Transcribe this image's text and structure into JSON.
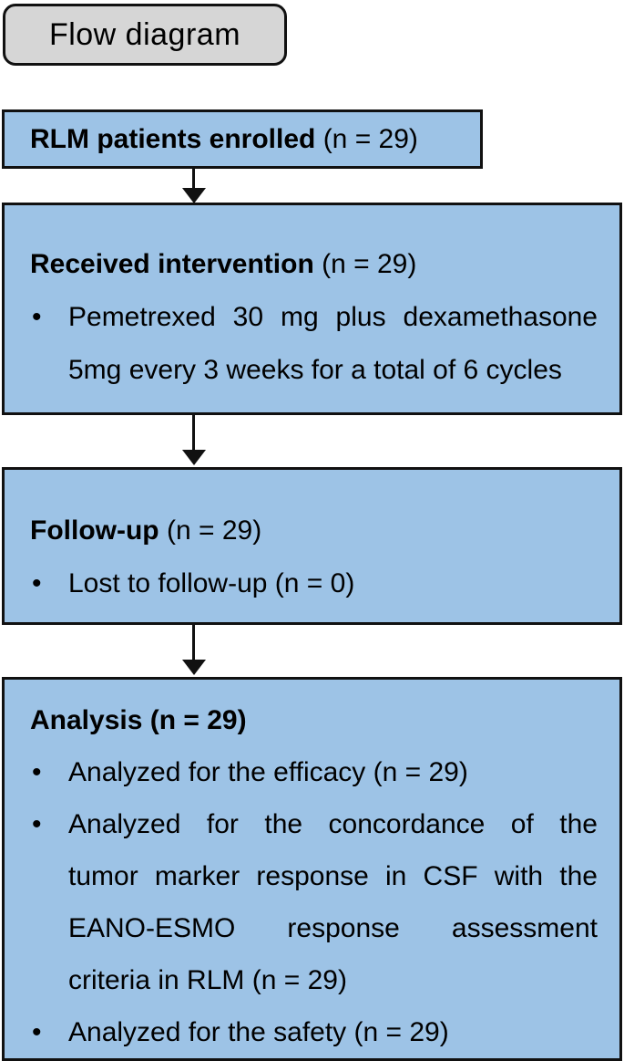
{
  "colors": {
    "box_fill": "#9DC3E6",
    "tag_fill": "#D6D6D6",
    "line": "#111111"
  },
  "bullet_char": "•",
  "tag": {
    "label": "Flow diagram"
  },
  "boxes": {
    "enrolled": {
      "title_bold": "RLM patients enrolled",
      "title_rest": " (n = 29)"
    },
    "intervention": {
      "title_bold": "Received intervention",
      "title_rest": " (n = 29)",
      "bullet_lines": [
        "Pemetrexed 30 mg plus dexamethasone",
        "5mg every 3 weeks for a total of 6 cycles"
      ]
    },
    "followup": {
      "title_bold": "Follow-up",
      "title_rest": " (n = 29)",
      "bullet": "Lost to follow-up (n = 0)"
    },
    "analysis": {
      "title_bold": "Analysis (n = 29)",
      "title_rest": "",
      "bullet1": "Analyzed for the efficacy (n = 29)",
      "bullet2_lines": [
        "Analyzed for the concordance of the",
        "tumor marker response in CSF with the",
        "EANO-ESMO response assessment",
        "criteria in RLM (n = 29)"
      ],
      "bullet3": "Analyzed for the safety (n = 29)"
    }
  }
}
